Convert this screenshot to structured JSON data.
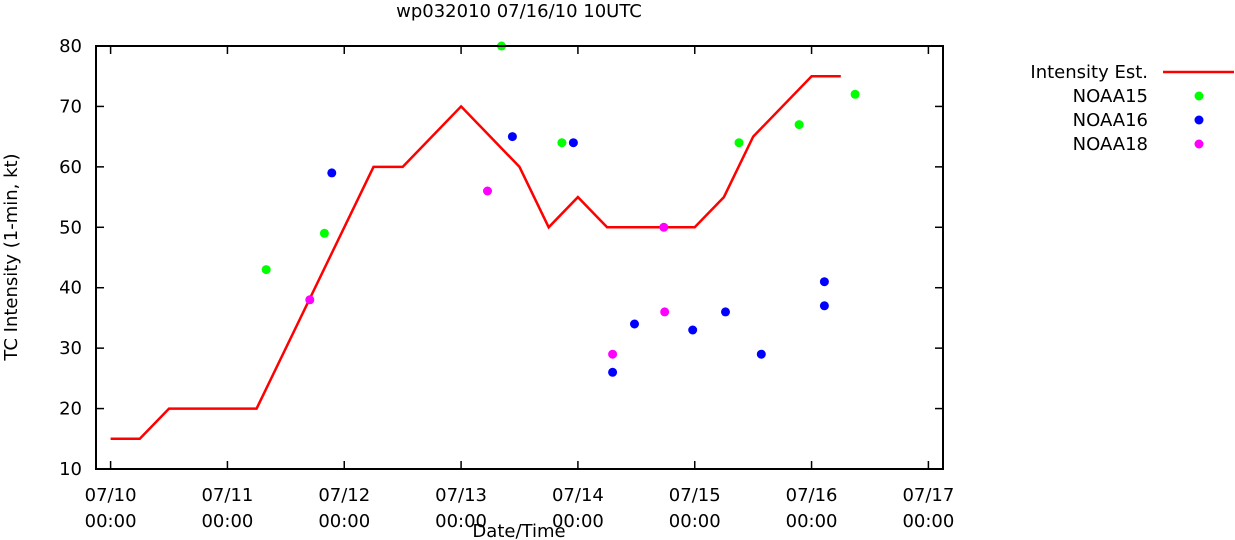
{
  "chart_data": {
    "type": "line",
    "title": "wp032010 07/16/10 10UTC",
    "xlabel": "Date/Time",
    "ylabel": "TC Intensity (1-min, kt)",
    "ylim": [
      10,
      80
    ],
    "yticks": [
      10,
      20,
      30,
      40,
      50,
      60,
      70,
      80
    ],
    "xlim": [
      "2010-07-09T21:00",
      "2010-07-17T03:00"
    ],
    "xticks": [
      {
        "t": "2010-07-10T00:00",
        "date": "07/10",
        "time": "00:00"
      },
      {
        "t": "2010-07-11T00:00",
        "date": "07/11",
        "time": "00:00"
      },
      {
        "t": "2010-07-12T00:00",
        "date": "07/12",
        "time": "00:00"
      },
      {
        "t": "2010-07-13T00:00",
        "date": "07/13",
        "time": "00:00"
      },
      {
        "t": "2010-07-14T00:00",
        "date": "07/14",
        "time": "00:00"
      },
      {
        "t": "2010-07-15T00:00",
        "date": "07/15",
        "time": "00:00"
      },
      {
        "t": "2010-07-16T00:00",
        "date": "07/16",
        "time": "00:00"
      },
      {
        "t": "2010-07-17T00:00",
        "date": "07/17",
        "time": "00:00"
      }
    ],
    "legend_position": "outside-right",
    "grid": false,
    "series": [
      {
        "name": "Intensity Est.",
        "kind": "line",
        "color": "#ff0000",
        "points": [
          {
            "t": "2010-07-10T00:00",
            "y": 15
          },
          {
            "t": "2010-07-10T06:00",
            "y": 15
          },
          {
            "t": "2010-07-10T12:00",
            "y": 20
          },
          {
            "t": "2010-07-10T18:00",
            "y": 20
          },
          {
            "t": "2010-07-11T00:00",
            "y": 20
          },
          {
            "t": "2010-07-11T06:00",
            "y": 20
          },
          {
            "t": "2010-07-12T06:00",
            "y": 60
          },
          {
            "t": "2010-07-12T12:00",
            "y": 60
          },
          {
            "t": "2010-07-13T00:00",
            "y": 70
          },
          {
            "t": "2010-07-13T12:00",
            "y": 60
          },
          {
            "t": "2010-07-13T18:00",
            "y": 50
          },
          {
            "t": "2010-07-14T00:00",
            "y": 55
          },
          {
            "t": "2010-07-14T06:00",
            "y": 50
          },
          {
            "t": "2010-07-14T18:00",
            "y": 50
          },
          {
            "t": "2010-07-15T00:00",
            "y": 50
          },
          {
            "t": "2010-07-15T06:00",
            "y": 55
          },
          {
            "t": "2010-07-15T12:00",
            "y": 65
          },
          {
            "t": "2010-07-16T00:00",
            "y": 75
          },
          {
            "t": "2010-07-16T06:00",
            "y": 75
          }
        ]
      },
      {
        "name": "NOAA15",
        "kind": "points",
        "color": "#00ff00",
        "points": [
          {
            "t": "2010-07-11T07:58",
            "y": 43
          },
          {
            "t": "2010-07-11T19:55",
            "y": 49
          },
          {
            "t": "2010-07-13T08:18",
            "y": 80
          },
          {
            "t": "2010-07-13T20:43",
            "y": 64
          },
          {
            "t": "2010-07-15T09:05",
            "y": 64
          },
          {
            "t": "2010-07-15T21:26",
            "y": 67
          },
          {
            "t": "2010-07-16T08:57",
            "y": 72
          }
        ]
      },
      {
        "name": "NOAA16",
        "kind": "points",
        "color": "#0000ff",
        "points": [
          {
            "t": "2010-07-11T21:26",
            "y": 59
          },
          {
            "t": "2010-07-13T10:32",
            "y": 65
          },
          {
            "t": "2010-07-13T23:04",
            "y": 64
          },
          {
            "t": "2010-07-14T07:08",
            "y": 26
          },
          {
            "t": "2010-07-14T11:38",
            "y": 34
          },
          {
            "t": "2010-07-14T23:35",
            "y": 33
          },
          {
            "t": "2010-07-15T06:19",
            "y": 36
          },
          {
            "t": "2010-07-15T13:41",
            "y": 29
          },
          {
            "t": "2010-07-16T02:38",
            "y": 41
          },
          {
            "t": "2010-07-16T02:38",
            "y": 37
          }
        ]
      },
      {
        "name": "NOAA18",
        "kind": "points",
        "color": "#ff00ff",
        "points": [
          {
            "t": "2010-07-11T16:55",
            "y": 38
          },
          {
            "t": "2010-07-13T05:26",
            "y": 56
          },
          {
            "t": "2010-07-14T07:08",
            "y": 29
          },
          {
            "t": "2010-07-14T17:39",
            "y": 50
          },
          {
            "t": "2010-07-14T17:50",
            "y": 36
          }
        ]
      }
    ]
  }
}
